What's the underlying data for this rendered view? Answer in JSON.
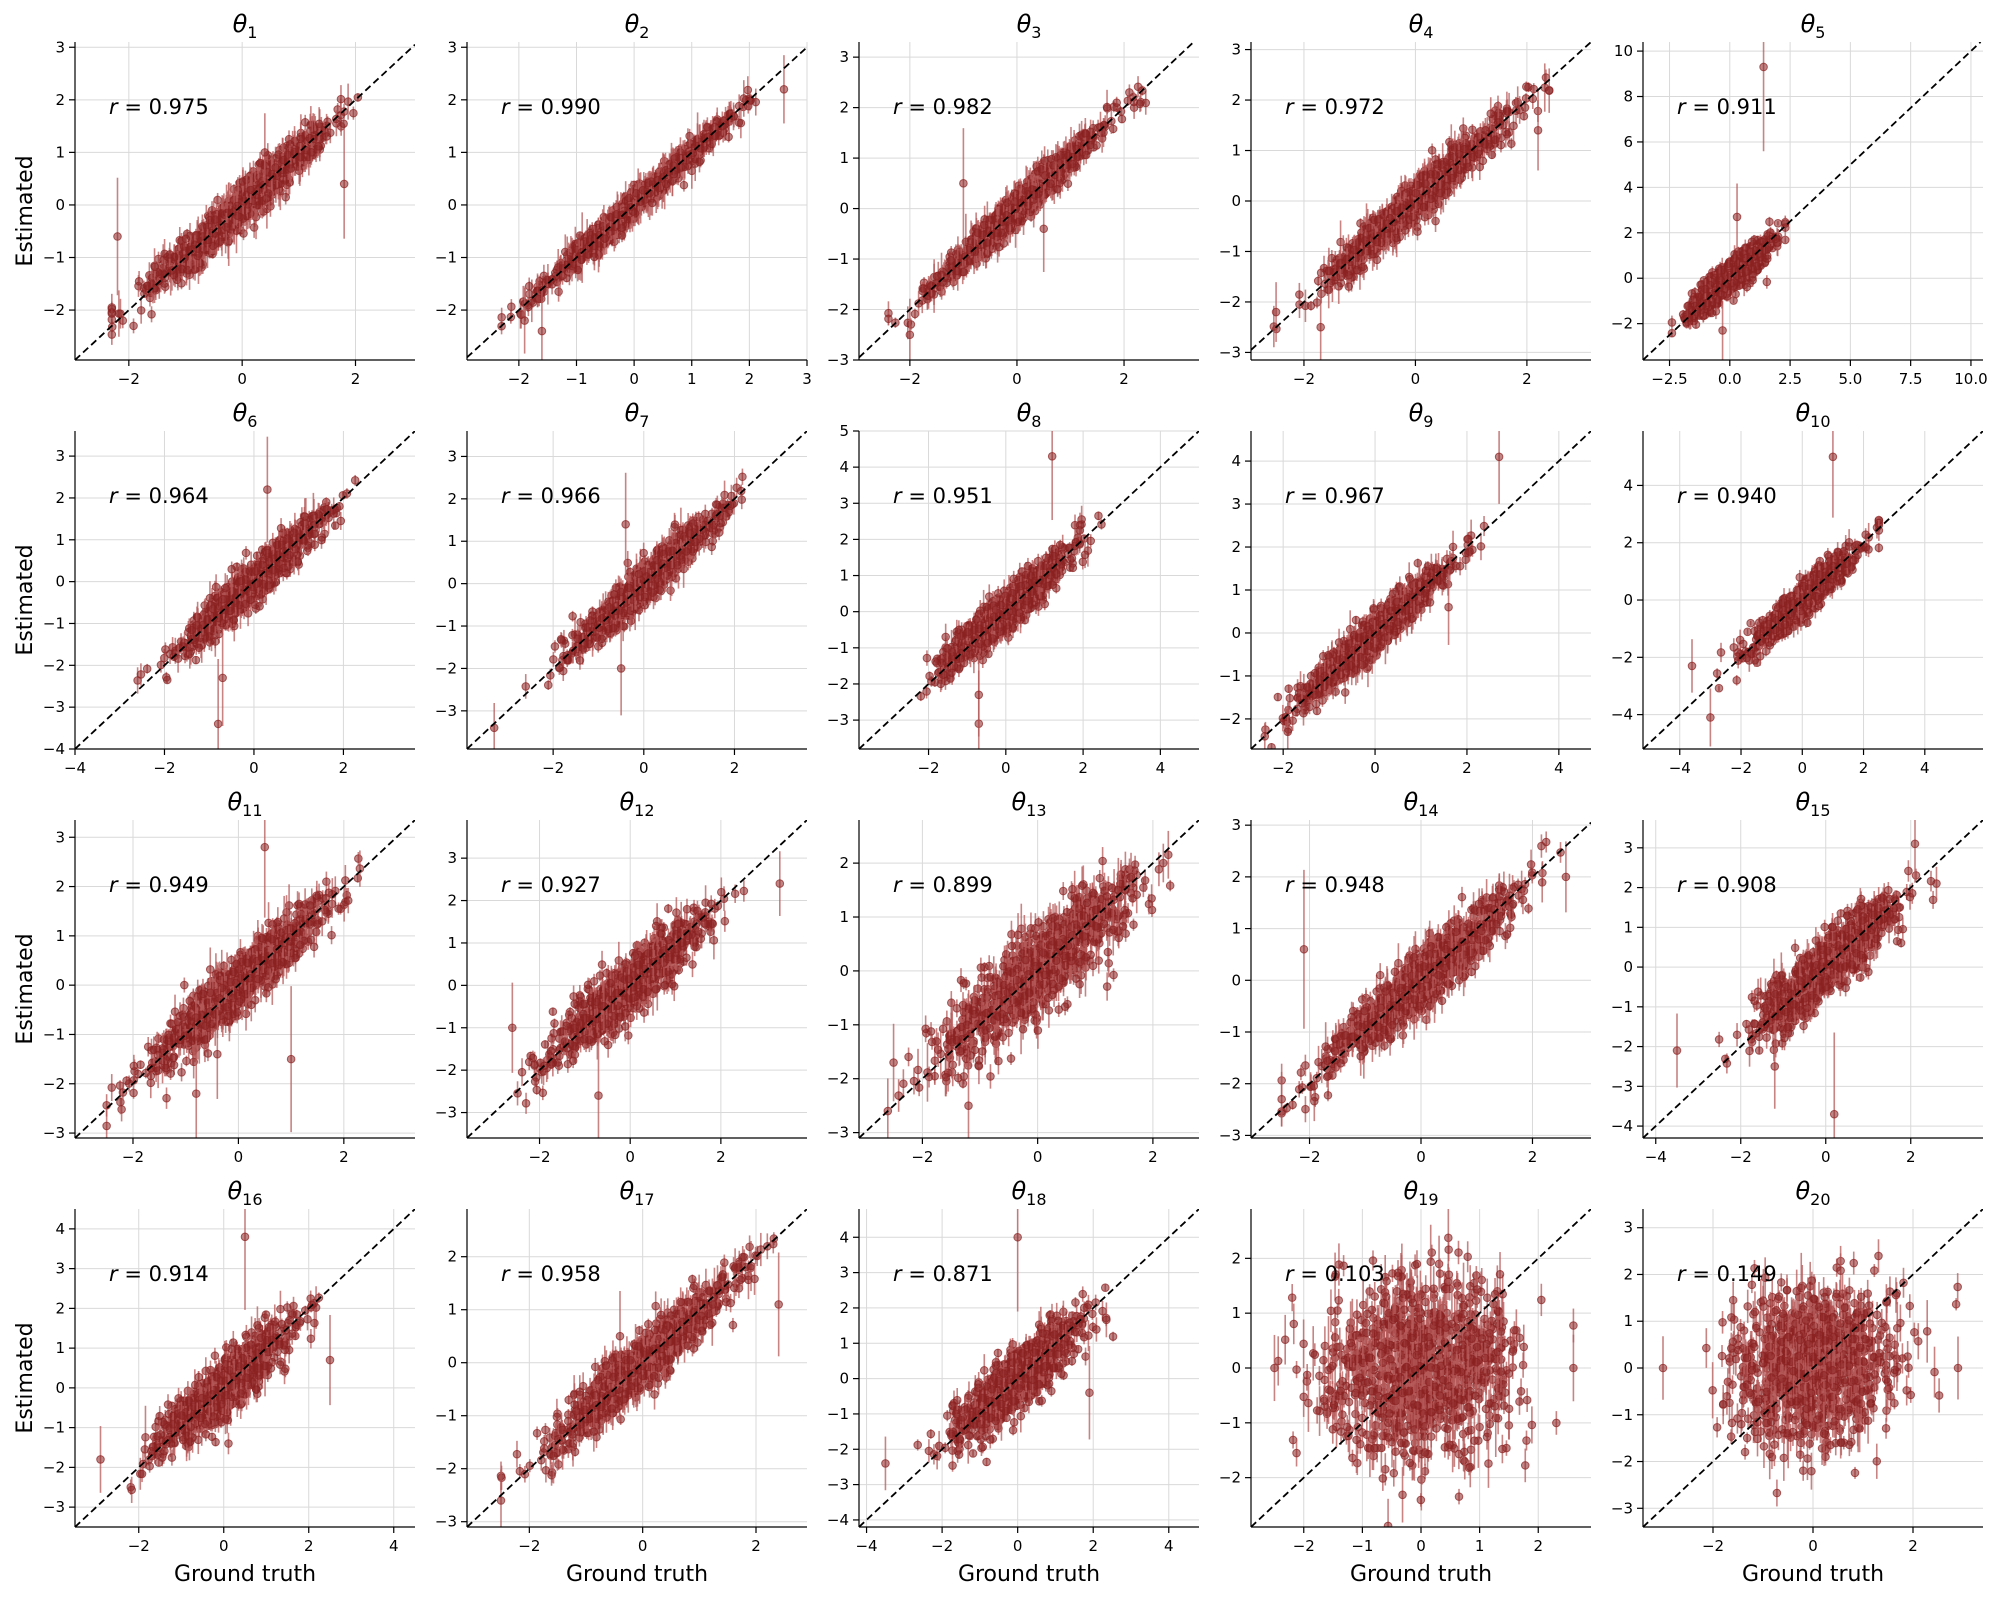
{
  "figure": {
    "ylabel": "Estimated",
    "xlabel": "Ground truth"
  },
  "colors": {
    "point": "#8b2222",
    "errorbar": "#b55a5a",
    "identity_line": "#000000",
    "grid": "#d9d9d9"
  },
  "chart_data": [
    {
      "type": "scatter",
      "title": "θ1",
      "title_base": "θ",
      "title_sub": "1",
      "r_label": "r = 0.975",
      "r": 0.975,
      "xlim": [
        -2.95,
        3.05
      ],
      "ylim": [
        -2.95,
        3.1
      ],
      "xticks": [
        -2,
        0,
        2
      ],
      "yticks": [
        -2,
        -1,
        0,
        1,
        2,
        3
      ],
      "grid": true,
      "x_range": [
        -2.3,
        2.7
      ],
      "n_points": 1000,
      "outliers": [
        [
          0.4,
          1.0
        ],
        [
          1.8,
          0.4
        ],
        [
          -2.2,
          -0.6
        ]
      ]
    },
    {
      "type": "scatter",
      "title": "θ2",
      "title_base": "θ",
      "title_sub": "2",
      "r_label": "r = 0.990",
      "r": 0.99,
      "xlim": [
        -2.9,
        3.0
      ],
      "ylim": [
        -2.95,
        3.1
      ],
      "xticks": [
        -2,
        -1,
        0,
        1,
        2,
        3
      ],
      "yticks": [
        -2,
        -1,
        0,
        1,
        2,
        3
      ],
      "grid": true,
      "x_range": [
        -2.3,
        2.8
      ],
      "n_points": 1000,
      "outliers": [
        [
          -1.6,
          -2.4
        ],
        [
          -1.9,
          -2.2
        ],
        [
          2.6,
          2.2
        ]
      ]
    },
    {
      "type": "scatter",
      "title": "θ3",
      "title_base": "θ",
      "title_sub": "3",
      "r_label": "r = 0.982",
      "r": 0.982,
      "xlim": [
        -2.95,
        3.4
      ],
      "ylim": [
        -3.0,
        3.3
      ],
      "xticks": [
        -2,
        0,
        2
      ],
      "yticks": [
        -3,
        -2,
        -1,
        0,
        1,
        2,
        3
      ],
      "grid": true,
      "x_range": [
        -2.4,
        2.9
      ],
      "n_points": 1000,
      "outliers": [
        [
          -1.0,
          0.5
        ],
        [
          -2.0,
          -2.5
        ],
        [
          0.5,
          -0.4
        ]
      ]
    },
    {
      "type": "scatter",
      "title": "θ4",
      "title_base": "θ",
      "title_sub": "4",
      "r_label": "r = 0.972",
      "r": 0.972,
      "xlim": [
        -2.95,
        3.15
      ],
      "ylim": [
        -3.15,
        3.15
      ],
      "xticks": [
        -2,
        0,
        2
      ],
      "yticks": [
        -3,
        -2,
        -1,
        0,
        1,
        2,
        3
      ],
      "grid": true,
      "x_range": [
        -2.6,
        2.4
      ],
      "n_points": 1000,
      "outliers": [
        [
          -1.7,
          -2.5
        ],
        [
          -2.5,
          -2.2
        ],
        [
          2.2,
          1.4
        ]
      ]
    },
    {
      "type": "scatter",
      "title": "θ5",
      "title_base": "θ",
      "title_sub": "5",
      "r_label": "r = 0.911",
      "r": 0.911,
      "xlim": [
        -3.6,
        10.5
      ],
      "ylim": [
        -3.6,
        10.4
      ],
      "xticks": [
        -2.5,
        0.0,
        2.5,
        5.0,
        7.5,
        10.0
      ],
      "xtick_labels": [
        "−2.5",
        "0.0",
        "2.5",
        "5.0",
        "7.5",
        "10.0"
      ],
      "yticks": [
        -2,
        0,
        2,
        4,
        6,
        8,
        10
      ],
      "grid": true,
      "x_range": [
        -2.4,
        2.3
      ],
      "n_points": 1000,
      "outliers": [
        [
          1.4,
          9.3
        ],
        [
          0.3,
          2.7
        ],
        [
          -0.3,
          -2.3
        ]
      ]
    },
    {
      "type": "scatter",
      "title": "θ6",
      "title_base": "θ",
      "title_sub": "6",
      "r_label": "r = 0.964",
      "r": 0.964,
      "xlim": [
        -4.0,
        3.6
      ],
      "ylim": [
        -4.0,
        3.6
      ],
      "xticks": [
        -4,
        -2,
        0,
        2
      ],
      "yticks": [
        -4,
        -3,
        -2,
        -1,
        0,
        1,
        2,
        3
      ],
      "grid": true,
      "x_range": [
        -2.6,
        3.1
      ],
      "n_points": 1000,
      "outliers": [
        [
          0.3,
          2.2
        ],
        [
          -0.8,
          -3.4
        ],
        [
          -0.7,
          -2.3
        ]
      ]
    },
    {
      "type": "scatter",
      "title": "θ7",
      "title_base": "θ",
      "title_sub": "7",
      "r_label": "r = 0.966",
      "r": 0.966,
      "xlim": [
        -3.9,
        3.6
      ],
      "ylim": [
        -3.9,
        3.6
      ],
      "xticks": [
        -2,
        0,
        2
      ],
      "yticks": [
        -3,
        -2,
        -1,
        0,
        1,
        2,
        3
      ],
      "grid": true,
      "x_range": [
        -2.7,
        2.8
      ],
      "n_points": 1000,
      "outliers": [
        [
          -3.3,
          -3.4
        ],
        [
          -0.4,
          1.4
        ],
        [
          -0.5,
          -2.0
        ]
      ]
    },
    {
      "type": "scatter",
      "title": "θ8",
      "title_base": "θ",
      "title_sub": "8",
      "r_label": "r = 0.951",
      "r": 0.951,
      "xlim": [
        -3.8,
        5.0
      ],
      "ylim": [
        -3.8,
        5.0
      ],
      "xticks": [
        -2,
        0,
        2,
        4
      ],
      "yticks": [
        -3,
        -2,
        -1,
        0,
        1,
        2,
        3,
        4,
        5
      ],
      "grid": true,
      "x_range": [
        -2.2,
        2.9
      ],
      "n_points": 1000,
      "outliers": [
        [
          1.2,
          4.3
        ],
        [
          -0.7,
          -3.1
        ],
        [
          -0.7,
          -2.3
        ]
      ]
    },
    {
      "type": "scatter",
      "title": "θ9",
      "title_base": "θ",
      "title_sub": "9",
      "r_label": "r = 0.967",
      "r": 0.967,
      "xlim": [
        -2.7,
        4.7
      ],
      "ylim": [
        -2.7,
        4.7
      ],
      "xticks": [
        -2,
        0,
        2,
        4
      ],
      "yticks": [
        -2,
        -1,
        0,
        1,
        2,
        3,
        4
      ],
      "grid": true,
      "x_range": [
        -2.4,
        2.8
      ],
      "n_points": 1000,
      "outliers": [
        [
          2.7,
          4.1
        ],
        [
          -1.9,
          -2.3
        ],
        [
          1.6,
          0.6
        ]
      ]
    },
    {
      "type": "scatter",
      "title": "θ10",
      "title_base": "θ",
      "title_sub": "10",
      "r_label": "r = 0.940",
      "r": 0.94,
      "xlim": [
        -5.2,
        5.9
      ],
      "ylim": [
        -5.2,
        5.9
      ],
      "xticks": [
        -4,
        -2,
        0,
        2,
        4
      ],
      "yticks": [
        -4,
        -2,
        0,
        2,
        4
      ],
      "grid": true,
      "x_range": [
        -3.0,
        2.5
      ],
      "n_points": 1000,
      "outliers": [
        [
          1.0,
          5.0
        ],
        [
          -3.0,
          -4.1
        ],
        [
          -3.6,
          -2.3
        ]
      ]
    },
    {
      "type": "scatter",
      "title": "θ11",
      "title_base": "θ",
      "title_sub": "11",
      "r_label": "r = 0.949",
      "r": 0.949,
      "xlim": [
        -3.1,
        3.35
      ],
      "ylim": [
        -3.1,
        3.35
      ],
      "xticks": [
        -2,
        0,
        2
      ],
      "yticks": [
        -3,
        -2,
        -1,
        0,
        1,
        2,
        3
      ],
      "grid": true,
      "x_range": [
        -2.5,
        3.0
      ],
      "n_points": 1000,
      "outliers": [
        [
          0.5,
          2.8
        ],
        [
          -0.8,
          -2.2
        ],
        [
          1.0,
          -1.5
        ],
        [
          -0.4,
          -1.4
        ]
      ]
    },
    {
      "type": "scatter",
      "title": "θ12",
      "title_base": "θ",
      "title_sub": "12",
      "r_label": "r = 0.927",
      "r": 0.927,
      "xlim": [
        -3.6,
        3.9
      ],
      "ylim": [
        -3.6,
        3.9
      ],
      "xticks": [
        -2,
        0,
        2
      ],
      "yticks": [
        -3,
        -2,
        -1,
        0,
        1,
        2,
        3
      ],
      "grid": true,
      "x_range": [
        -2.9,
        3.3
      ],
      "n_points": 1000,
      "outliers": [
        [
          -0.7,
          -2.6
        ],
        [
          -2.6,
          -1.0
        ],
        [
          3.3,
          2.4
        ]
      ]
    },
    {
      "type": "scatter",
      "title": "θ13",
      "title_base": "θ",
      "title_sub": "13",
      "r_label": "r = 0.899",
      "r": 0.899,
      "xlim": [
        -3.1,
        2.8
      ],
      "ylim": [
        -3.1,
        2.8
      ],
      "xticks": [
        -2,
        0,
        2
      ],
      "yticks": [
        -3,
        -2,
        -1,
        0,
        1,
        2
      ],
      "grid": true,
      "x_range": [
        -2.6,
        2.3
      ],
      "n_points": 1000,
      "outliers": [
        [
          -2.6,
          -2.6
        ],
        [
          -1.2,
          -2.5
        ],
        [
          -2.5,
          -1.7
        ],
        [
          1.4,
          1.5
        ]
      ]
    },
    {
      "type": "scatter",
      "title": "θ14",
      "title_base": "θ",
      "title_sub": "14",
      "r_label": "r = 0.948",
      "r": 0.948,
      "xlim": [
        -3.05,
        3.05
      ],
      "ylim": [
        -3.05,
        3.1
      ],
      "xticks": [
        -2,
        0,
        2
      ],
      "yticks": [
        -3,
        -2,
        -1,
        0,
        1,
        2,
        3
      ],
      "grid": true,
      "x_range": [
        -2.5,
        2.6
      ],
      "n_points": 1000,
      "outliers": [
        [
          -2.1,
          0.6
        ],
        [
          -2.5,
          -2.3
        ],
        [
          2.6,
          2.0
        ]
      ]
    },
    {
      "type": "scatter",
      "title": "θ15",
      "title_base": "θ",
      "title_sub": "15",
      "r_label": "r = 0.908",
      "r": 0.908,
      "xlim": [
        -4.3,
        3.7
      ],
      "ylim": [
        -4.3,
        3.7
      ],
      "xticks": [
        -4,
        -2,
        0,
        2
      ],
      "yticks": [
        -4,
        -3,
        -2,
        -1,
        0,
        1,
        2,
        3
      ],
      "grid": true,
      "x_range": [
        -3.5,
        2.8
      ],
      "n_points": 1000,
      "outliers": [
        [
          0.2,
          -3.7
        ],
        [
          2.1,
          3.1
        ],
        [
          -3.5,
          -2.1
        ],
        [
          -1.2,
          -2.5
        ]
      ]
    },
    {
      "type": "scatter",
      "title": "θ16",
      "title_base": "θ",
      "title_sub": "16",
      "r_label": "r = 0.914",
      "r": 0.914,
      "xlim": [
        -3.5,
        4.5
      ],
      "ylim": [
        -3.5,
        4.5
      ],
      "xticks": [
        -2,
        0,
        2,
        4
      ],
      "yticks": [
        -3,
        -2,
        -1,
        0,
        1,
        2,
        3,
        4
      ],
      "grid": true,
      "x_range": [
        -2.9,
        2.5
      ],
      "n_points": 1000,
      "outliers": [
        [
          0.5,
          3.8
        ],
        [
          -2.9,
          -1.8
        ],
        [
          2.5,
          0.7
        ]
      ]
    },
    {
      "type": "scatter",
      "title": "θ17",
      "title_base": "θ",
      "title_sub": "17",
      "r_label": "r = 0.958",
      "r": 0.958,
      "xlim": [
        -3.1,
        2.9
      ],
      "ylim": [
        -3.1,
        2.9
      ],
      "xticks": [
        -2,
        0,
        2
      ],
      "yticks": [
        -3,
        -2,
        -1,
        0,
        1,
        2
      ],
      "grid": true,
      "x_range": [
        -2.5,
        2.4
      ],
      "n_points": 1000,
      "outliers": [
        [
          -2.5,
          -2.6
        ],
        [
          -0.4,
          0.5
        ],
        [
          2.4,
          1.1
        ]
      ]
    },
    {
      "type": "scatter",
      "title": "θ18",
      "title_base": "θ",
      "title_sub": "18",
      "r_label": "r = 0.871",
      "r": 0.871,
      "xlim": [
        -4.2,
        4.8
      ],
      "ylim": [
        -4.2,
        4.8
      ],
      "xticks": [
        -4,
        -2,
        0,
        2,
        4
      ],
      "yticks": [
        -4,
        -3,
        -2,
        -1,
        0,
        1,
        2,
        3,
        4
      ],
      "grid": true,
      "x_range": [
        -3.5,
        2.6
      ],
      "n_points": 1000,
      "outliers": [
        [
          0.0,
          4.0
        ],
        [
          -3.5,
          -2.4
        ],
        [
          1.9,
          -0.4
        ]
      ]
    },
    {
      "type": "scatter",
      "title": "θ19",
      "title_base": "θ",
      "title_sub": "19",
      "r_label": "r = 0.103",
      "r": 0.103,
      "xlim": [
        -2.9,
        2.9
      ],
      "ylim": [
        -2.9,
        2.9
      ],
      "xticks": [
        -2,
        -1,
        0,
        1,
        2
      ],
      "yticks": [
        -2,
        -1,
        0,
        1,
        2
      ],
      "grid": true,
      "x_range": [
        -2.5,
        2.6
      ],
      "n_points": 1000,
      "outliers": [
        [
          -2.5,
          0.0
        ],
        [
          2.6,
          0.0
        ]
      ]
    },
    {
      "type": "scatter",
      "title": "θ20",
      "title_base": "θ",
      "title_sub": "20",
      "r_label": "r = 0.149",
      "r": 0.149,
      "xlim": [
        -3.4,
        3.4
      ],
      "ylim": [
        -3.4,
        3.4
      ],
      "xticks": [
        -2,
        0,
        2
      ],
      "yticks": [
        -3,
        -2,
        -1,
        0,
        1,
        2,
        3
      ],
      "grid": true,
      "x_range": [
        -3.0,
        2.9
      ],
      "n_points": 1000,
      "outliers": [
        [
          -3.0,
          0.0
        ],
        [
          2.9,
          0.0
        ]
      ]
    }
  ]
}
